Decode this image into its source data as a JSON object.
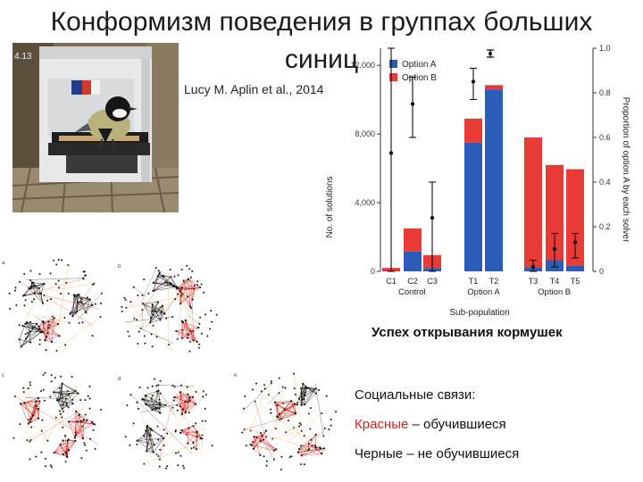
{
  "slide": {
    "title_line1": "Конформизм поведения в группах больших",
    "title_line2": "синиц",
    "citation": "Lucy M. Aplin et al., 2014",
    "photo_timestamp": "4.13",
    "caption": "Успех открывания кормушек",
    "legend_heading": "Социальные связи:",
    "legend_red_word": "Красные",
    "legend_red_rest": " – обучившиеся",
    "legend_black": "Черные – не обучившиеся"
  },
  "network_panels": [
    "a",
    "b",
    "c",
    "d",
    "e"
  ],
  "colors": {
    "option_a": "#2b5db6",
    "option_b": "#ea3a36",
    "learned_links": "#e0211b",
    "unlearned_links": "#111111"
  },
  "chart_data": {
    "type": "bar",
    "stacked": true,
    "ylabel": "No. of solutions",
    "ylabel_right": "Proportion of option A by each solver",
    "xlabel": "Sub-population",
    "ylim": [
      0,
      13000
    ],
    "yticks": [
      "0",
      "4,000",
      "8,000",
      "12,000"
    ],
    "ylim_right": [
      0,
      1.0
    ],
    "yticks_right": [
      "0",
      "0.2",
      "0.4",
      "0.6",
      "0.8",
      "1.0"
    ],
    "categories": [
      "C1",
      "C2",
      "C3",
      "T1",
      "T2",
      "T3",
      "T4",
      "T5"
    ],
    "groups": [
      {
        "label": "Control",
        "members": [
          "C1",
          "C2",
          "C3"
        ]
      },
      {
        "label": "Option A",
        "members": [
          "T1",
          "T2"
        ]
      },
      {
        "label": "Option B",
        "members": [
          "T3",
          "T4",
          "T5"
        ]
      }
    ],
    "series": [
      {
        "name": "Option A",
        "values": [
          50,
          1150,
          200,
          7500,
          10600,
          250,
          650,
          350
        ]
      },
      {
        "name": "Option B",
        "values": [
          150,
          1350,
          750,
          1400,
          250,
          7550,
          5550,
          5600
        ]
      }
    ],
    "proportion_points": {
      "mean": [
        0.53,
        0.75,
        0.24,
        0.85,
        null,
        0.02,
        0.1,
        0.13
      ],
      "lower": [
        0.0,
        0.6,
        0.0,
        0.77,
        null,
        0.0,
        0.02,
        0.06
      ],
      "upper": [
        1.0,
        0.87,
        0.4,
        0.91,
        null,
        0.05,
        0.17,
        0.17
      ]
    },
    "legend_position": "top-left"
  }
}
